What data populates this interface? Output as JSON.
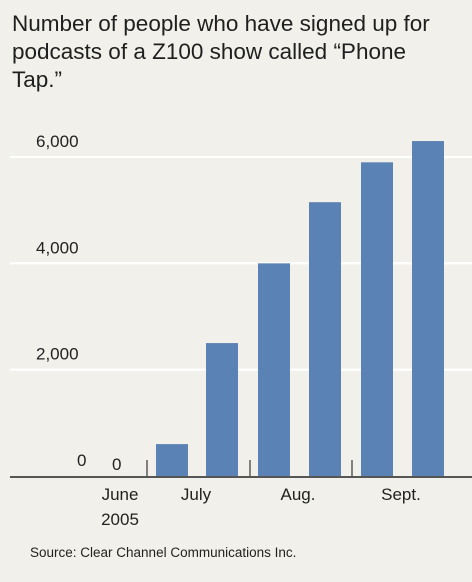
{
  "chart_data": {
    "type": "bar",
    "title": "Number of people who have signed up for podcasts of a Z100 show called “Phone Tap.”",
    "categories": [
      "June 2005 (1)",
      "June 2005 (2)",
      "July (1)",
      "July (2)",
      "Aug. (1)",
      "Aug. (2)",
      "Sept. (1)",
      "Sept. (2)"
    ],
    "values": [
      0,
      0,
      600,
      2500,
      4000,
      5150,
      5900,
      6300
    ],
    "x_tick_labels": [
      {
        "lines": [
          "June",
          "2005"
        ],
        "group": 0
      },
      {
        "lines": [
          "July"
        ],
        "group": 1
      },
      {
        "lines": [
          "Aug."
        ],
        "group": 2
      },
      {
        "lines": [
          "Sept."
        ],
        "group": 3
      }
    ],
    "zero_value_labels": [
      "0",
      "0"
    ],
    "ylim": [
      0,
      6500
    ],
    "y_ticks": [
      0,
      2000,
      4000,
      6000
    ],
    "y_tick_labels": [
      "0",
      "2,000",
      "4,000",
      "6,000"
    ],
    "grid": true,
    "bar_color": "#5b82b4",
    "grid_color": "#ffffff",
    "background_color": "#f1f0ea",
    "source": "Source: Clear Channel Communications Inc."
  }
}
